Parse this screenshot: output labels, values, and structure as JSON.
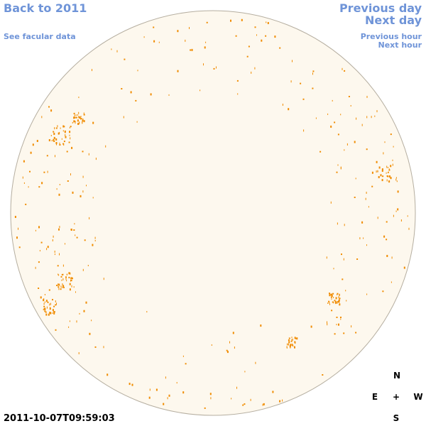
{
  "header": {
    "back": "Back to 2011",
    "facular": "See facular data"
  },
  "nav": {
    "previous_day": "Previous day",
    "next_day": "Next day",
    "previous_hour": "Previous hour",
    "next_hour": "Next hour"
  },
  "timestamp": "2011-10-07T09:59:03",
  "compass": {
    "north": "N",
    "east": "E",
    "center": "+",
    "west": "W",
    "south": "S"
  }
}
